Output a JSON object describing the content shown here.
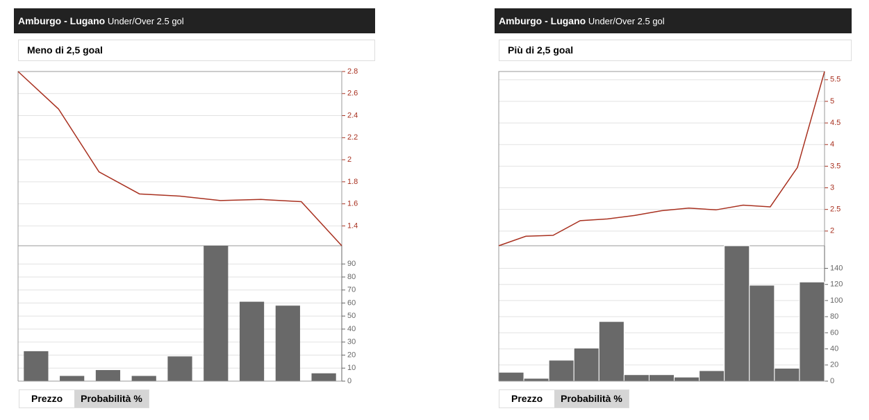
{
  "panels": [
    {
      "title": "Amburgo - Lugano",
      "subtitle": "Under/Over 2.5 gol",
      "selection": "Meno di 2,5 goal",
      "buttons": [
        "Prezzo",
        "Probabilità %"
      ]
    },
    {
      "title": "Amburgo - Lugano",
      "subtitle": "Under/Over 2.5 gol",
      "selection": "Più di 2,5 goal",
      "buttons": [
        "Prezzo",
        "Probabilità %"
      ]
    }
  ],
  "chart_data": [
    {
      "type": "line",
      "color": "#a8301f",
      "values": [
        2.8,
        2.46,
        1.89,
        1.69,
        1.67,
        1.63,
        1.64,
        1.62,
        1.22
      ],
      "ylim": [
        1.22,
        2.8
      ],
      "yticks": [
        1.4,
        1.6,
        1.8,
        2,
        2.2,
        2.4,
        2.6,
        2.8
      ],
      "grid": true
    },
    {
      "type": "bar",
      "color": "#696969",
      "values": [
        23,
        4,
        8.5,
        4,
        19,
        104,
        61,
        58,
        6
      ],
      "ylim": [
        0,
        104
      ],
      "yticks": [
        0,
        10,
        20,
        30,
        40,
        50,
        60,
        70,
        80,
        90
      ],
      "grid": true
    },
    {
      "type": "line",
      "color": "#a8301f",
      "values": [
        1.66,
        1.88,
        1.9,
        2.24,
        2.28,
        2.36,
        2.47,
        2.53,
        2.49,
        2.6,
        2.56,
        3.47,
        5.69
      ],
      "ylim": [
        1.66,
        5.69
      ],
      "yticks": [
        2,
        2.5,
        3,
        3.5,
        4,
        4.5,
        5,
        5.5
      ],
      "grid": true
    },
    {
      "type": "bar",
      "color": "#696969",
      "values": [
        11,
        3.5,
        26,
        41,
        74,
        8,
        8,
        5,
        13,
        168,
        119,
        16,
        123
      ],
      "ylim": [
        0,
        168
      ],
      "yticks": [
        0,
        20,
        40,
        60,
        80,
        100,
        120,
        140
      ],
      "grid": true
    }
  ]
}
